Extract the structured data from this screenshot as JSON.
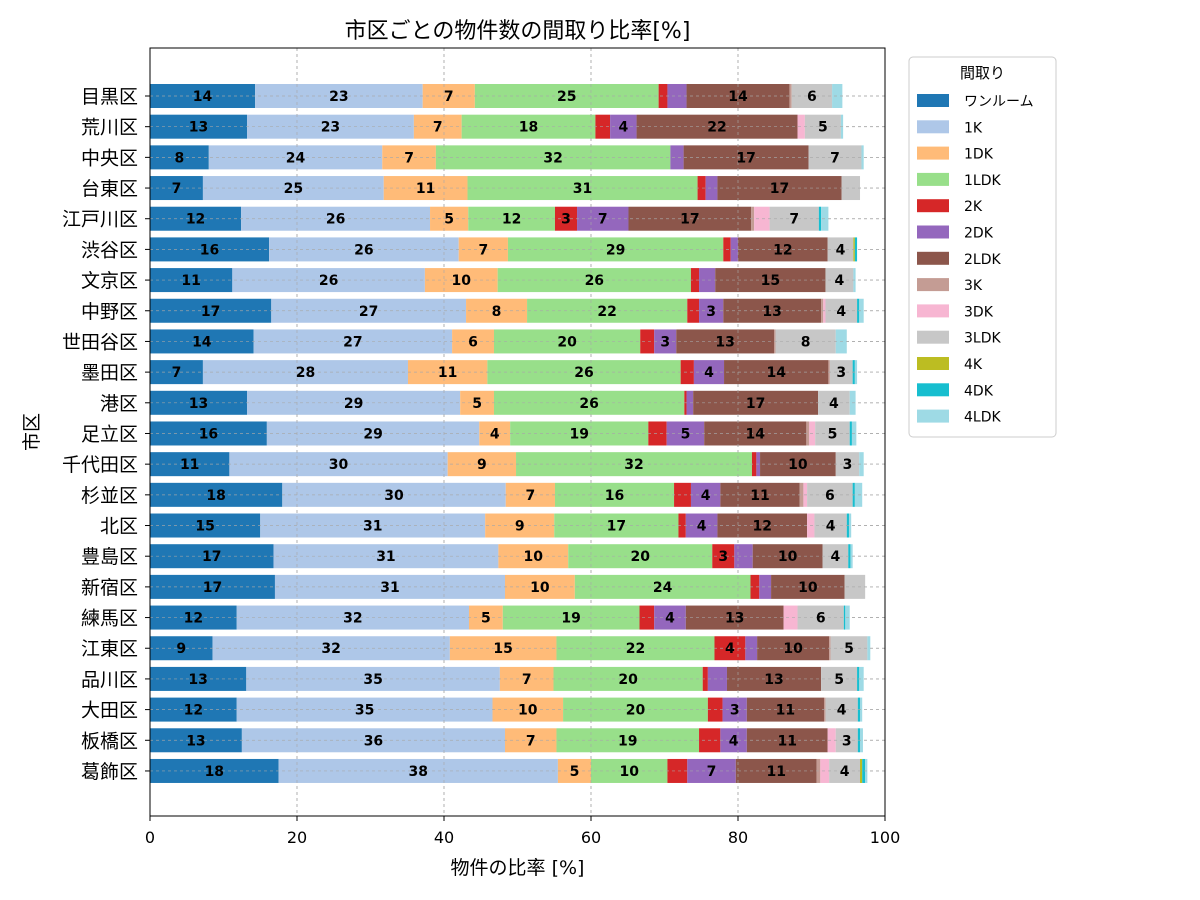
{
  "chart_data": {
    "type": "bar",
    "orientation": "horizontal",
    "stacked": true,
    "title": "市区ごとの物件数の間取り比率[%]",
    "xlabel": "物件の比率 [%]",
    "ylabel": "市区",
    "xlim": [
      0,
      100
    ],
    "xticks": [
      "0",
      "20",
      "40",
      "60",
      "80",
      "100"
    ],
    "grid": true,
    "legend": {
      "title": "間取り",
      "placement": "outside-right-top"
    },
    "categories": [
      "目黒区",
      "荒川区",
      "中央区",
      "台東区",
      "江戸川区",
      "渋谷区",
      "文京区",
      "中野区",
      "世田谷区",
      "墨田区",
      "港区",
      "足立区",
      "千代田区",
      "杉並区",
      "北区",
      "豊島区",
      "新宿区",
      "練馬区",
      "江東区",
      "品川区",
      "大田区",
      "板橋区",
      "葛飾区"
    ],
    "series": [
      {
        "name": "ワンルーム",
        "color": "#1f77b4",
        "values": [
          14.3,
          13.2,
          8.0,
          7.2,
          12.4,
          16.2,
          11.2,
          16.5,
          14.1,
          7.2,
          13.2,
          15.9,
          10.8,
          18.0,
          15.0,
          16.8,
          17.0,
          11.8,
          8.5,
          13.1,
          11.8,
          12.5,
          17.5
        ]
      },
      {
        "name": "1K",
        "color": "#aec7e8",
        "values": [
          22.8,
          22.7,
          23.6,
          24.6,
          25.7,
          25.8,
          26.2,
          26.5,
          27.0,
          27.9,
          29.0,
          28.9,
          29.7,
          30.4,
          30.6,
          30.6,
          31.3,
          31.6,
          32.3,
          34.5,
          34.8,
          35.8,
          38.0
        ]
      },
      {
        "name": "1DK",
        "color": "#ffbb78",
        "values": [
          7.1,
          6.5,
          7.3,
          11.4,
          5.2,
          6.7,
          9.9,
          8.3,
          5.7,
          10.8,
          4.6,
          4.2,
          9.3,
          6.7,
          9.4,
          9.5,
          9.5,
          4.6,
          14.5,
          7.3,
          9.6,
          7.0,
          4.5
        ]
      },
      {
        "name": "1LDK",
        "color": "#98df8a",
        "values": [
          25.0,
          18.2,
          31.9,
          31.3,
          11.8,
          29.3,
          26.3,
          21.8,
          19.9,
          26.3,
          25.9,
          18.8,
          32.1,
          16.2,
          16.9,
          19.6,
          23.9,
          18.6,
          21.5,
          20.3,
          19.7,
          19.4,
          10.4
        ]
      },
      {
        "name": "2K",
        "color": "#d62728",
        "values": [
          1.2,
          2.0,
          0,
          1.1,
          3.0,
          1.0,
          1.1,
          1.6,
          1.9,
          1.8,
          0.3,
          2.5,
          0.6,
          2.3,
          1.0,
          3.0,
          1.2,
          2.0,
          4.2,
          0.7,
          2.0,
          2.9,
          2.7
        ]
      },
      {
        "name": "2DK",
        "color": "#9467bd",
        "values": [
          2.6,
          3.6,
          1.8,
          1.6,
          7.0,
          1.0,
          2.2,
          3.3,
          3.0,
          4.1,
          0.9,
          5.1,
          0.5,
          4.0,
          4.3,
          2.5,
          1.6,
          4.3,
          1.6,
          2.6,
          3.3,
          3.6,
          6.6
        ]
      },
      {
        "name": "2LDK",
        "color": "#8c564b",
        "values": [
          14.0,
          21.9,
          17.0,
          16.9,
          16.7,
          12.2,
          15.0,
          13.3,
          13.3,
          14.2,
          17.0,
          13.9,
          10.3,
          10.8,
          12.2,
          9.5,
          10.0,
          13.3,
          9.8,
          12.8,
          10.5,
          11.0,
          11.0
        ]
      },
      {
        "name": "3K",
        "color": "#c49c94",
        "values": [
          0.3,
          0,
          0,
          0,
          0.4,
          0,
          0,
          0.3,
          0.2,
          0.2,
          0,
          0.4,
          0,
          0.5,
          0,
          0,
          0,
          0,
          0.2,
          0,
          0.2,
          0,
          0.5
        ]
      },
      {
        "name": "3DK",
        "color": "#f7b6d2",
        "values": [
          0,
          1.0,
          0,
          0,
          2.1,
          0,
          0,
          0.3,
          0,
          0,
          0,
          0.8,
          0,
          0.5,
          1.0,
          0,
          0,
          1.9,
          0,
          0,
          0,
          1.1,
          1.2
        ]
      },
      {
        "name": "3LDK",
        "color": "#c7c7c7",
        "values": [
          5.5,
          4.9,
          7.2,
          2.5,
          6.7,
          3.5,
          3.8,
          4.3,
          8.2,
          3.1,
          4.3,
          4.7,
          3.2,
          6.2,
          4.4,
          3.5,
          2.8,
          6.3,
          5.0,
          4.9,
          4.4,
          3.0,
          4.2
        ]
      },
      {
        "name": "4K",
        "color": "#bcbd22",
        "values": [
          0,
          0,
          0,
          0,
          0,
          0.2,
          0,
          0,
          0,
          0,
          0,
          0,
          0,
          0,
          0,
          0,
          0,
          0,
          0,
          0,
          0,
          0,
          0.3
        ]
      },
      {
        "name": "4DK",
        "color": "#17becf",
        "values": [
          0,
          0,
          0,
          0,
          0.3,
          0.3,
          0,
          0.3,
          0,
          0.3,
          0,
          0.3,
          0,
          0.3,
          0.3,
          0.3,
          0,
          0.2,
          0,
          0.3,
          0.3,
          0.3,
          0.4
        ]
      },
      {
        "name": "4LDK",
        "color": "#9edae5",
        "values": [
          1.4,
          0.3,
          0.3,
          0,
          1.0,
          0,
          0.3,
          0.6,
          1.5,
          0.3,
          0.8,
          0.6,
          0.6,
          1.0,
          0.3,
          0.3,
          0,
          0.6,
          0.4,
          0.6,
          0.3,
          0.4,
          0.3
        ]
      }
    ],
    "data_labels": {
      "shown_when_value_at_least": 3,
      "format": "rounded-integer"
    }
  }
}
